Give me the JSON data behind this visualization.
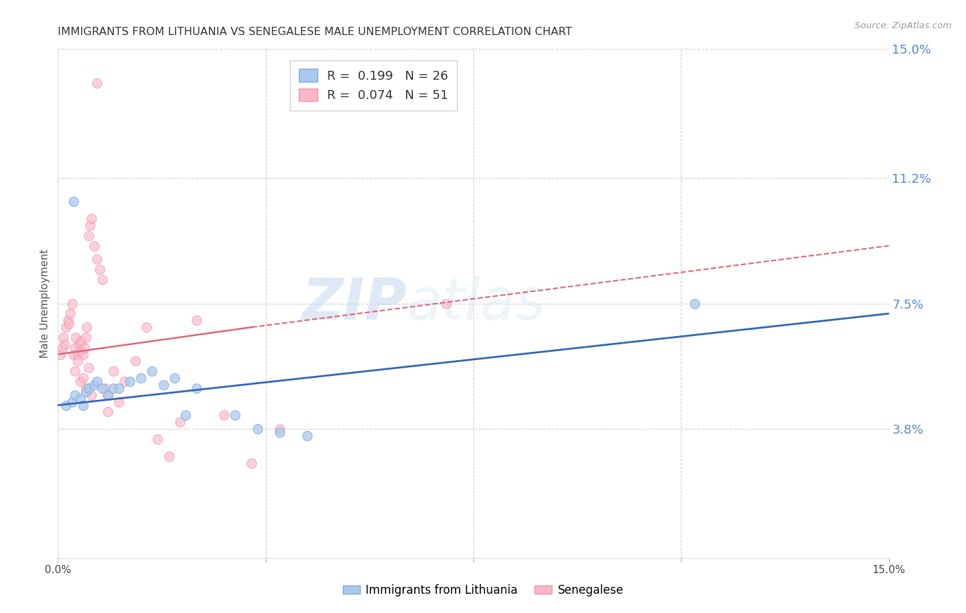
{
  "title": "IMMIGRANTS FROM LITHUANIA VS SENEGALESE MALE UNEMPLOYMENT CORRELATION CHART",
  "source": "Source: ZipAtlas.com",
  "ylabel": "Male Unemployment",
  "y_tick_values_right": [
    3.8,
    7.5,
    11.2,
    15.0
  ],
  "xlim": [
    0,
    15
  ],
  "ylim": [
    0,
    15
  ],
  "background_color": "#ffffff",
  "grid_color": "#d0d0d0",
  "title_color": "#333333",
  "right_label_color": "#5588cc",
  "blue_scatter": {
    "color": "#aac8ee",
    "edgecolor": "#7aaad8",
    "size": 100,
    "alpha": 0.75,
    "x": [
      0.15,
      0.25,
      0.3,
      0.4,
      0.45,
      0.5,
      0.55,
      0.65,
      0.7,
      0.8,
      0.9,
      1.0,
      1.1,
      1.3,
      1.5,
      1.7,
      1.9,
      2.1,
      2.3,
      2.5,
      3.2,
      3.6,
      4.0,
      4.5,
      11.5,
      0.28
    ],
    "y": [
      4.5,
      4.6,
      4.8,
      4.7,
      4.5,
      4.9,
      5.0,
      5.1,
      5.2,
      5.0,
      4.8,
      5.0,
      5.0,
      5.2,
      5.3,
      5.5,
      5.1,
      5.3,
      4.2,
      5.0,
      4.2,
      3.8,
      3.7,
      3.6,
      7.5,
      10.5
    ]
  },
  "pink_scatter": {
    "color": "#f9b8c8",
    "edgecolor": "#f090a8",
    "size": 100,
    "alpha": 0.65,
    "x": [
      0.05,
      0.08,
      0.1,
      0.12,
      0.15,
      0.18,
      0.2,
      0.22,
      0.25,
      0.28,
      0.3,
      0.32,
      0.35,
      0.38,
      0.4,
      0.42,
      0.45,
      0.48,
      0.5,
      0.52,
      0.55,
      0.58,
      0.6,
      0.65,
      0.7,
      0.75,
      0.8,
      0.85,
      0.9,
      1.0,
      1.1,
      1.2,
      1.4,
      1.6,
      1.8,
      2.0,
      2.2,
      2.5,
      3.0,
      3.5,
      4.0,
      0.3,
      0.4,
      0.5,
      0.6,
      0.35,
      0.45,
      0.55,
      7.0,
      0.9,
      0.7
    ],
    "y": [
      6.0,
      6.2,
      6.5,
      6.3,
      6.8,
      7.0,
      6.9,
      7.2,
      7.5,
      6.0,
      6.2,
      6.5,
      6.0,
      6.3,
      6.1,
      6.4,
      6.0,
      6.2,
      6.5,
      6.8,
      9.5,
      9.8,
      10.0,
      9.2,
      8.8,
      8.5,
      8.2,
      5.0,
      4.8,
      5.5,
      4.6,
      5.2,
      5.8,
      6.8,
      3.5,
      3.0,
      4.0,
      7.0,
      4.2,
      2.8,
      3.8,
      5.5,
      5.2,
      5.0,
      4.8,
      5.8,
      5.3,
      5.6,
      7.5,
      4.3,
      14.0
    ]
  },
  "blue_line": {
    "color": "#3366bb",
    "x_start": 0,
    "y_start": 4.5,
    "x_end": 15,
    "y_end": 7.2,
    "linewidth": 2.0
  },
  "pink_line_solid": {
    "color": "#dd6677",
    "x_start": 0,
    "y_start": 6.0,
    "x_end": 3.5,
    "y_end": 6.8,
    "linewidth": 1.8
  },
  "pink_line_dashed": {
    "color": "#dd6677",
    "x_start": 3.5,
    "y_start": 6.8,
    "x_end": 15,
    "y_end": 9.2,
    "linewidth": 1.5
  }
}
